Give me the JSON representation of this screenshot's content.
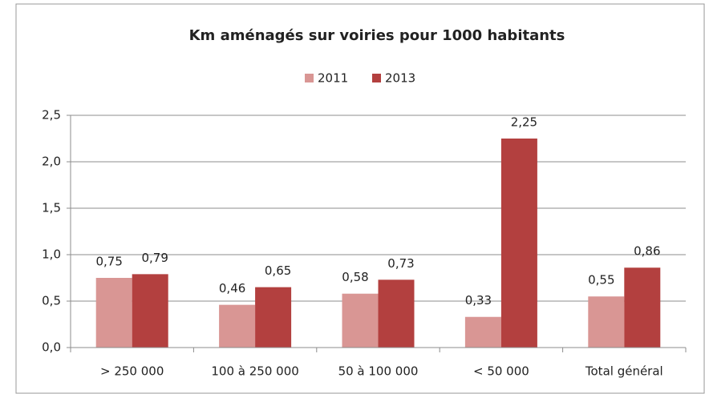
{
  "chart_data": {
    "type": "bar",
    "title": "Km aménagés sur voiries pour 1000 habitants",
    "categories": [
      "> 250 000",
      "100 à 250 000",
      "50 à 100 000",
      "< 50 000",
      "Total général"
    ],
    "series": [
      {
        "name": "2011",
        "color": "#d99694",
        "values": [
          0.75,
          0.46,
          0.58,
          0.33,
          0.55
        ],
        "value_labels": [
          "0,75",
          "0,46",
          "0,58",
          "0,33",
          "0,55"
        ]
      },
      {
        "name": "2013",
        "color": "#b3403f",
        "values": [
          0.79,
          0.65,
          0.73,
          2.25,
          0.86
        ],
        "value_labels": [
          "0,79",
          "0,65",
          "0,73",
          "2,25",
          "0,86"
        ]
      }
    ],
    "ylim": [
      0,
      2.5
    ],
    "yticks": [
      {
        "value": 0,
        "label": "0,0"
      },
      {
        "value": 0.5,
        "label": "0,5"
      },
      {
        "value": 1,
        "label": "1,0"
      },
      {
        "value": 1.5,
        "label": "1,5"
      },
      {
        "value": 2,
        "label": "2,0"
      },
      {
        "value": 2.5,
        "label": "2,5"
      }
    ],
    "grid": true,
    "legend": "top"
  }
}
